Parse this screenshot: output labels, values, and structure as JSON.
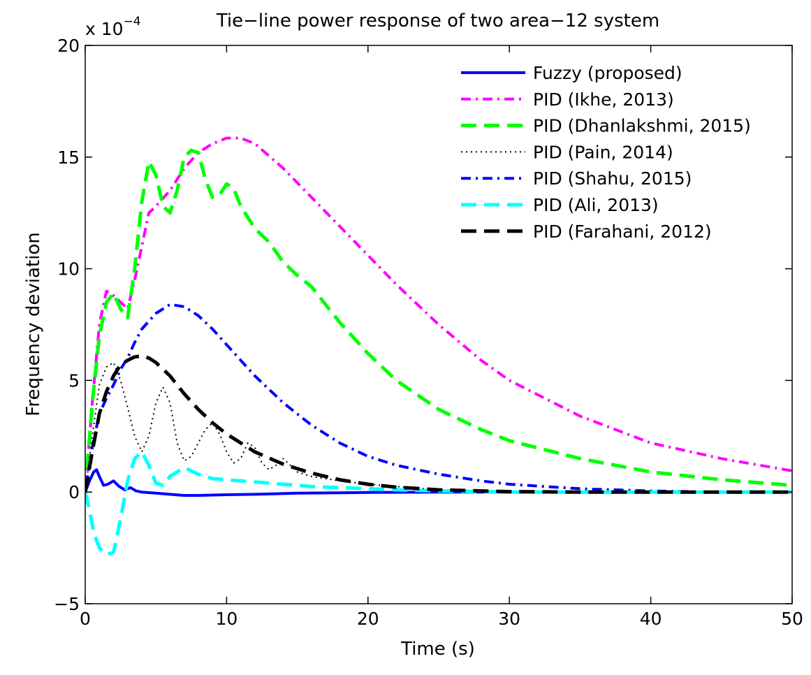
{
  "chart_data": {
    "type": "line",
    "title": "Tie−line power response of two area−12 system",
    "xlabel": "Time (s)",
    "ylabel": "Frequency deviation",
    "y_exponent_prefix": "x 10",
    "y_exponent_power": "−4",
    "xlim": [
      0,
      50
    ],
    "ylim": [
      -5,
      20
    ],
    "x_ticks": [
      0,
      10,
      20,
      30,
      40,
      50
    ],
    "x_tick_labels": [
      "0",
      "10",
      "20",
      "30",
      "40",
      "50"
    ],
    "y_ticks": [
      -5,
      0,
      5,
      10,
      15,
      20
    ],
    "y_tick_labels": [
      "−5",
      "0",
      "5",
      "10",
      "15",
      "20"
    ],
    "grid": false,
    "legend_position": "top-right",
    "series": [
      {
        "name": "Fuzzy (proposed)",
        "color": "#0000ff",
        "dash": "solid",
        "width": 4,
        "x": [
          0,
          0.3,
          0.6,
          0.8,
          1.0,
          1.3,
          1.6,
          2.0,
          2.4,
          2.8,
          3.2,
          3.6,
          4.0,
          5.0,
          6.0,
          7.0,
          8.0,
          10,
          12,
          15,
          18,
          20,
          25,
          30,
          40,
          50
        ],
        "y": [
          0,
          0.5,
          0.9,
          1.0,
          0.7,
          0.3,
          0.35,
          0.5,
          0.25,
          0.1,
          0.2,
          0.05,
          0.0,
          -0.05,
          -0.1,
          -0.15,
          -0.15,
          -0.12,
          -0.1,
          -0.05,
          -0.03,
          -0.02,
          0,
          0,
          0,
          0
        ]
      },
      {
        "name": "PID (Ikhe, 2013)",
        "color": "#ff00ff",
        "dash": "14,7,3,7",
        "width": 4,
        "x": [
          0,
          0.5,
          1.0,
          1.5,
          2.0,
          2.5,
          3.0,
          3.5,
          4.0,
          4.5,
          5.0,
          6.0,
          7.0,
          8.0,
          9.0,
          10.0,
          11.0,
          12.0,
          14.0,
          16.0,
          18.0,
          20.0,
          22.0,
          25.0,
          28.0,
          30.0,
          35.0,
          40.0,
          45.0,
          50.0
        ],
        "y": [
          0,
          4.0,
          7.5,
          9.0,
          8.8,
          8.5,
          8.2,
          9.5,
          11.0,
          12.5,
          12.8,
          13.5,
          14.5,
          15.2,
          15.6,
          15.85,
          15.85,
          15.6,
          14.5,
          13.2,
          11.9,
          10.6,
          9.3,
          7.5,
          5.9,
          5.0,
          3.4,
          2.2,
          1.5,
          0.95
        ]
      },
      {
        "name": "PID (Dhanlakshmi, 2015)",
        "color": "#00ff00",
        "dash": "22,11",
        "width": 5,
        "x": [
          0,
          0.5,
          1.0,
          1.5,
          2.0,
          2.5,
          3.0,
          3.5,
          4.0,
          4.5,
          5.0,
          5.5,
          6.0,
          6.5,
          7.0,
          7.5,
          8.0,
          8.5,
          9.0,
          9.5,
          10.0,
          10.5,
          11.0,
          12.0,
          13.0,
          14.0,
          15.0,
          16.0,
          18.0,
          20.0,
          22.0,
          25.0,
          28.0,
          30.0,
          35.0,
          40.0,
          45.0,
          50.0
        ],
        "y": [
          0,
          4.0,
          7.0,
          8.5,
          8.9,
          8.2,
          7.8,
          10.0,
          13.0,
          14.8,
          14.2,
          12.8,
          12.5,
          13.5,
          15.0,
          15.3,
          15.2,
          14.0,
          13.2,
          13.3,
          13.8,
          13.6,
          12.8,
          11.8,
          11.2,
          10.3,
          9.7,
          9.2,
          7.6,
          6.2,
          5.0,
          3.7,
          2.8,
          2.3,
          1.5,
          0.9,
          0.55,
          0.3
        ]
      },
      {
        "name": "PID (Pain, 2014)",
        "color": "#000000",
        "dash": "2,5",
        "width": 2,
        "x": [
          0,
          0.5,
          1.0,
          1.5,
          2.0,
          2.5,
          3.0,
          3.5,
          4.0,
          4.5,
          5.0,
          5.5,
          6.0,
          6.5,
          7.0,
          7.5,
          8.0,
          8.5,
          9.0,
          9.5,
          10.0,
          10.5,
          11.0,
          11.5,
          12.0,
          12.5,
          13.0,
          13.5,
          14.0,
          14.5,
          15.0,
          16.0,
          18.0,
          20.0,
          22.0,
          25.0,
          30.0,
          35.0,
          40.0,
          50.0
        ],
        "y": [
          0,
          2.5,
          4.8,
          5.6,
          5.8,
          5.0,
          3.8,
          2.5,
          1.8,
          2.5,
          4.0,
          4.7,
          4.0,
          2.2,
          1.4,
          1.6,
          2.2,
          2.8,
          3.1,
          2.6,
          1.8,
          1.3,
          1.5,
          2.2,
          2.0,
          1.3,
          1.0,
          1.2,
          1.5,
          1.2,
          0.9,
          0.7,
          0.5,
          0.35,
          0.25,
          0.1,
          0.05,
          0.02,
          0,
          0
        ]
      },
      {
        "name": "PID (Shahu, 2015)",
        "color": "#0000ff",
        "dash": "14,7,3,7",
        "width": 4,
        "x": [
          0,
          0.5,
          1.0,
          1.5,
          2.0,
          2.5,
          3.0,
          3.5,
          4.0,
          5.0,
          6.0,
          7.0,
          8.0,
          9.0,
          10.0,
          12.0,
          14.0,
          16.0,
          18.0,
          20.0,
          22.0,
          25.0,
          28.0,
          30.0,
          35.0,
          40.0,
          45.0,
          50.0
        ],
        "y": [
          0,
          2.0,
          3.5,
          4.2,
          4.8,
          5.5,
          6.0,
          6.7,
          7.3,
          8.0,
          8.4,
          8.3,
          7.9,
          7.3,
          6.6,
          5.2,
          4.0,
          3.0,
          2.2,
          1.6,
          1.2,
          0.8,
          0.5,
          0.35,
          0.15,
          0.05,
          0,
          0
        ]
      },
      {
        "name": "PID (Ali, 2013)",
        "color": "#00ffff",
        "dash": "22,11",
        "width": 5,
        "x": [
          0,
          0.3,
          0.6,
          1.0,
          1.5,
          2.0,
          2.5,
          3.0,
          3.5,
          4.0,
          4.5,
          5.0,
          5.5,
          6.0,
          7.0,
          8.0,
          9.0,
          10.0,
          12.0,
          14.0,
          16.0,
          18.0,
          20.0,
          22.0,
          25.0,
          30.0,
          35.0,
          40.0,
          50.0
        ],
        "y": [
          0,
          -0.8,
          -1.8,
          -2.5,
          -2.8,
          -2.7,
          -1.2,
          0.5,
          1.5,
          1.8,
          1.2,
          0.4,
          0.3,
          0.7,
          1.1,
          0.8,
          0.6,
          0.55,
          0.45,
          0.35,
          0.25,
          0.2,
          0.15,
          0.1,
          0.05,
          0,
          0,
          0,
          0
        ]
      },
      {
        "name": "PID (Farahani, 2012)",
        "color": "#000000",
        "dash": "22,11",
        "width": 5,
        "x": [
          0,
          0.5,
          1.0,
          1.5,
          2.0,
          2.5,
          3.0,
          3.5,
          4.0,
          4.5,
          5.0,
          6.0,
          7.0,
          8.0,
          9.0,
          10.0,
          11.0,
          12.0,
          14.0,
          16.0,
          18.0,
          20.0,
          22.0,
          25.0,
          28.0,
          30.0,
          35.0,
          40.0,
          50.0
        ],
        "y": [
          0,
          1.8,
          3.5,
          4.5,
          5.2,
          5.7,
          5.9,
          6.05,
          6.1,
          6.0,
          5.8,
          5.2,
          4.4,
          3.7,
          3.1,
          2.6,
          2.2,
          1.8,
          1.25,
          0.85,
          0.55,
          0.35,
          0.22,
          0.1,
          0.05,
          0.02,
          0,
          0,
          0
        ]
      }
    ]
  }
}
